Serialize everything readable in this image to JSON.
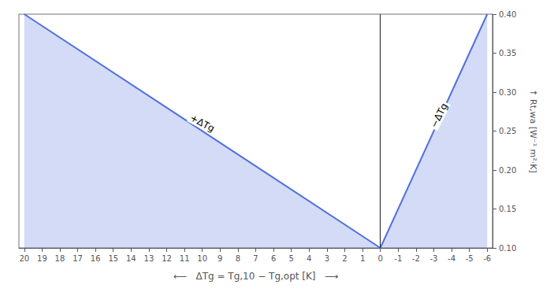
{
  "chart_data": {
    "type": "line",
    "x_label": "⟵   ΔTg = Tg,10 − Tg,opt [K]   ⟶",
    "y_label": "↑ Rt,wa [W⁻¹ m²·K]",
    "x": [
      20,
      0,
      -6
    ],
    "values": [
      0.4,
      0.1,
      0.4
    ],
    "xlim": [
      20.3,
      -6.3
    ],
    "ylim": [
      0.1,
      0.4
    ],
    "xticks": [
      20,
      19,
      18,
      17,
      16,
      15,
      14,
      13,
      12,
      11,
      10,
      9,
      8,
      7,
      6,
      5,
      4,
      3,
      2,
      1,
      0,
      -1,
      -2,
      -3,
      -4,
      -5,
      -6
    ],
    "yticks": [
      {
        "value": 0.1,
        "label": "0.10"
      },
      0.15,
      {
        "value": 0.2,
        "label": "0.20"
      },
      0.25,
      {
        "value": 0.3,
        "label": "0.30"
      },
      0.35,
      {
        "value": 0.4,
        "label": "0.40"
      }
    ],
    "grid": false,
    "reference_lines": [
      {
        "x": 0
      }
    ],
    "annotations": [
      {
        "text": "+ΔTg",
        "x": 10,
        "y": 0.26
      },
      {
        "text": "−ΔTg",
        "x": -3.3,
        "y": 0.27
      }
    ]
  }
}
